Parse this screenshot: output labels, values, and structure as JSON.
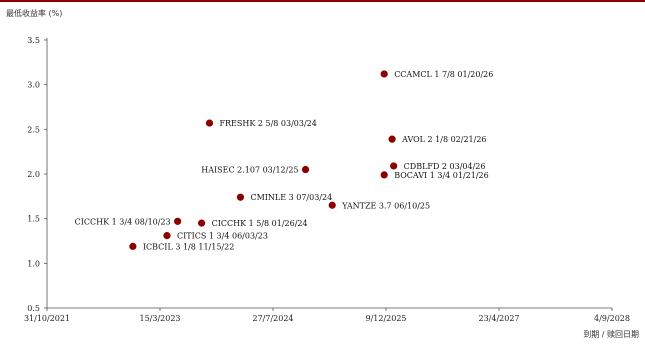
{
  "chart_data": {
    "type": "scatter",
    "ylabel": "最低收益率 (%)",
    "xlabel": "到期 / 赎回日期",
    "ylim": [
      0.5,
      3.5
    ],
    "yticks": [
      "0.5",
      "1.0",
      "1.5",
      "2.0",
      "2.5",
      "3.0",
      "3.5"
    ],
    "xlim": [
      "2021-10-31",
      "2028-09-04"
    ],
    "xticks": [
      "31/10/2021",
      "15/3/2023",
      "27/7/2024",
      "9/12/2025",
      "23/4/2027",
      "4/9/2028"
    ],
    "marker_color": "#8b0000",
    "points": [
      {
        "label": "CCAMCL 1 7/8 01/20/26",
        "x": "2025-12-01",
        "y": 3.12
      },
      {
        "label": "FRESHK 2 5/8 03/03/24",
        "x": "2023-10-20",
        "y": 2.57
      },
      {
        "label": "AVOL 2 1/8 02/21/26",
        "x": "2026-01-05",
        "y": 2.39
      },
      {
        "label": "HAISEC 2.107 03/12/25",
        "x": "2024-12-18",
        "y": 2.05
      },
      {
        "label": "CDBLFD 2 03/04/26",
        "x": "2026-01-12",
        "y": 2.09
      },
      {
        "label": "BOCAVI 1 3/4 01/21/26",
        "x": "2025-12-01",
        "y": 1.99
      },
      {
        "label": "CMINLE 3 07/03/24",
        "x": "2024-03-05",
        "y": 1.74
      },
      {
        "label": "YANTZE 3.7 06/10/25",
        "x": "2025-04-15",
        "y": 1.65
      },
      {
        "label": "CICCHK 1 3/4 08/10/23",
        "x": "2023-06-01",
        "y": 1.47
      },
      {
        "label": "CICCHK 1 5/8 01/26/24",
        "x": "2023-09-15",
        "y": 1.45
      },
      {
        "label": "CITICS 1 3/4 06/03/23",
        "x": "2023-04-15",
        "y": 1.31
      },
      {
        "label": "ICBCIL 3 1/8 11/15/22",
        "x": "2022-11-15",
        "y": 1.19
      }
    ]
  }
}
